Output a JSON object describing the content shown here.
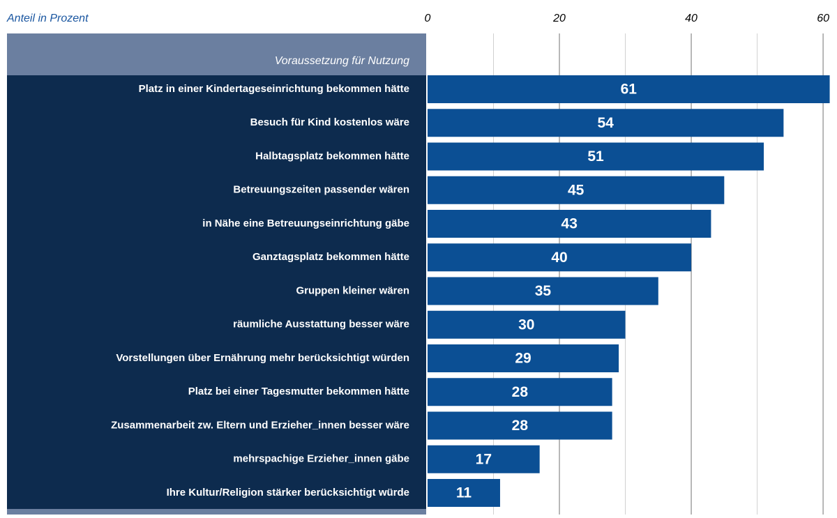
{
  "chart_data": {
    "type": "bar",
    "orientation": "horizontal",
    "axis_label": "Anteil in Prozent",
    "category_header": "Voraussetzung für Nutzung",
    "categories": [
      "Platz in einer Kindertageseinrichtung bekommen hätte",
      "Besuch für Kind kostenlos wäre",
      "Halbtagsplatz bekommen hätte",
      "Betreuungszeiten passender wären",
      "in Nähe eine Betreuungseinrichtung gäbe",
      "Ganztagsplatz bekommen hätte",
      "Gruppen kleiner wären",
      "räumliche Ausstattung besser wäre",
      "Vorstellungen über Ernährung mehr berücksichtigt würden",
      "Platz bei einer Tagesmutter bekommen hätte",
      "Zusammenarbeit zw. Eltern und Erzieher_innen besser wäre",
      "mehrspachige Erzieher_innen gäbe",
      "Ihre Kultur/Religion stärker berücksichtigt würde"
    ],
    "values": [
      61,
      54,
      51,
      45,
      43,
      40,
      35,
      30,
      29,
      28,
      28,
      17,
      11
    ],
    "color": "#0b4f94",
    "xlim": [
      0,
      62
    ],
    "xticks": [
      0,
      20,
      40,
      60
    ],
    "minor_xticks": [
      10,
      30,
      50
    ],
    "grid": true
  }
}
